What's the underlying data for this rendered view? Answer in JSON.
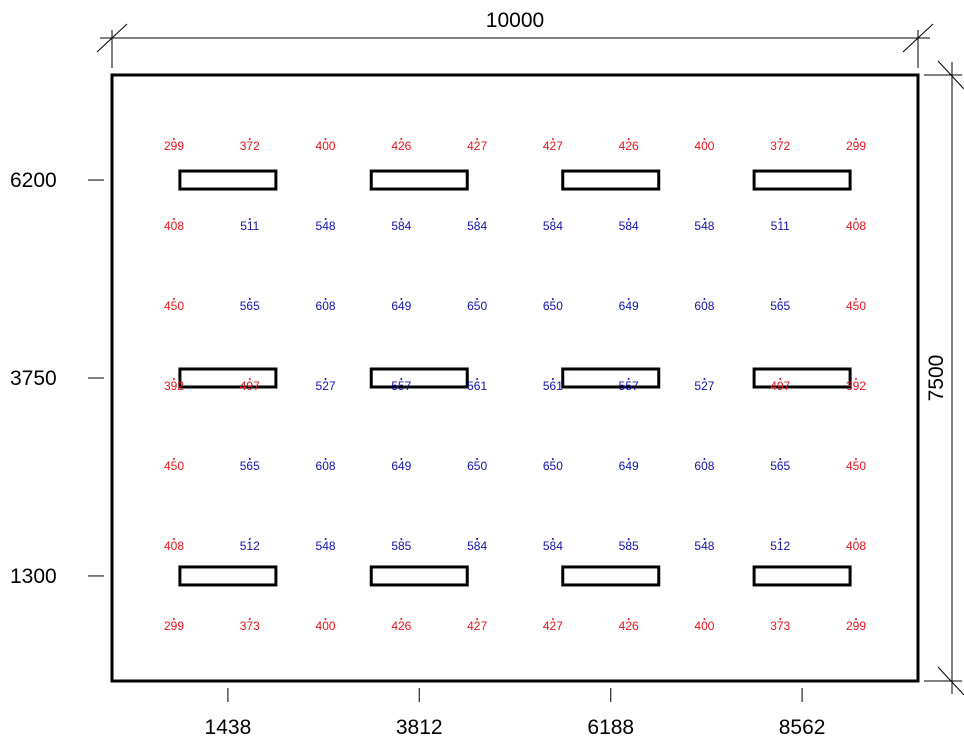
{
  "drawing": {
    "width_label": "10000",
    "height_label": "7500",
    "row_labels": [
      "6200",
      "3750",
      "1300"
    ],
    "col_labels": [
      "1438",
      "3812",
      "6188",
      "8562"
    ]
  },
  "colors": {
    "low": "#e8131b",
    "high": "#1111b0",
    "frame": "#000000"
  },
  "grid": {
    "rows": [
      [
        "299",
        "372",
        "400",
        "426",
        "427",
        "427",
        "426",
        "400",
        "372",
        "299"
      ],
      [
        "408",
        "511",
        "548",
        "584",
        "584",
        "584",
        "584",
        "548",
        "511",
        "408"
      ],
      [
        "450",
        "565",
        "608",
        "649",
        "650",
        "650",
        "649",
        "608",
        "565",
        "450"
      ],
      [
        "392",
        "497",
        "527",
        "557",
        "561",
        "561",
        "557",
        "527",
        "497",
        "392"
      ],
      [
        "450",
        "565",
        "608",
        "649",
        "650",
        "650",
        "649",
        "608",
        "565",
        "450"
      ],
      [
        "408",
        "512",
        "548",
        "585",
        "584",
        "584",
        "585",
        "548",
        "512",
        "408"
      ],
      [
        "299",
        "373",
        "400",
        "426",
        "427",
        "427",
        "426",
        "400",
        "373",
        "299"
      ]
    ],
    "threshold": 500
  }
}
